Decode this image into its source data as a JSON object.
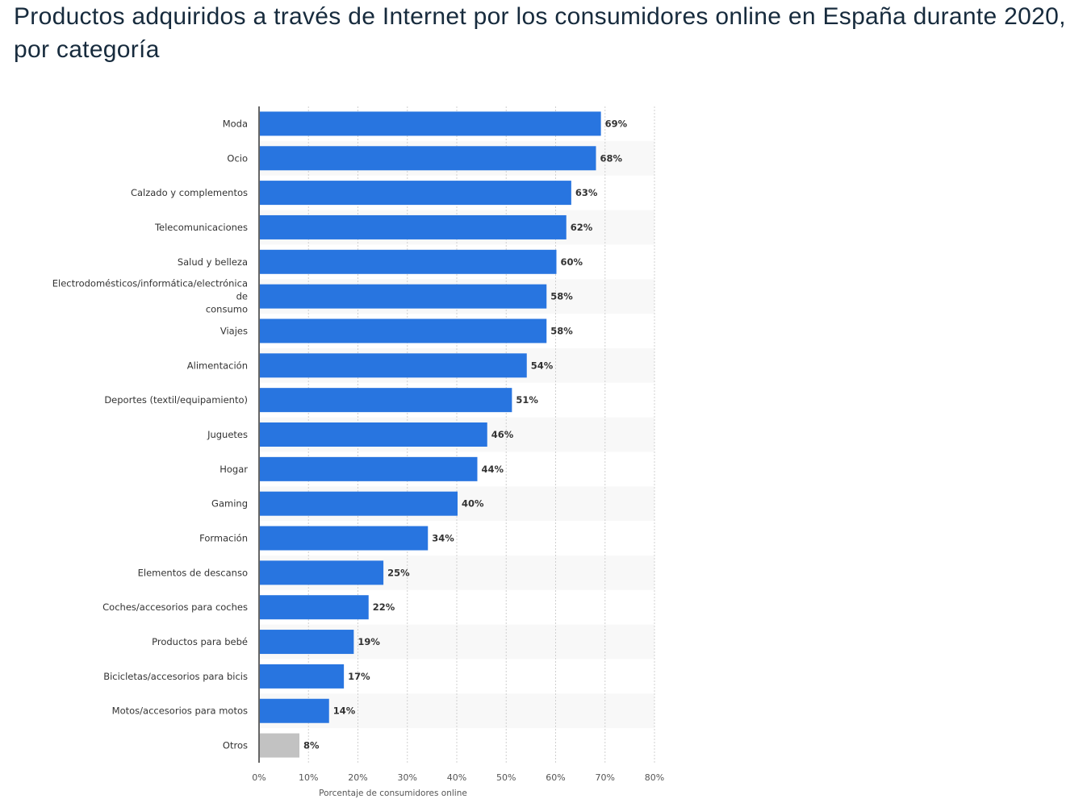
{
  "title": "Productos adquiridos a través de Internet por los consumidores online en España durante 2020, por categoría",
  "colors": {
    "bar": "#2875e0",
    "bar_other": "#c2c2c2",
    "band": "#f8f8f8",
    "grid": "#d0d0d0",
    "axis": "#333333"
  },
  "chart_data": {
    "type": "bar",
    "orientation": "horizontal",
    "title": "Productos adquiridos a través de Internet por los consumidores online en España durante 2020, por categoría",
    "xlabel": "Porcentaje de consumidores online",
    "ylabel": "",
    "xlim": [
      0,
      80
    ],
    "xticks": [
      "0%",
      "10%",
      "20%",
      "30%",
      "40%",
      "50%",
      "60%",
      "70%",
      "80%"
    ],
    "grid": true,
    "categories": [
      "Moda",
      "Ocio",
      "Calzado y complementos",
      "Telecomunicaciones",
      "Salud y belleza",
      "Electrodomésticos/informática/electrónica de consumo",
      "Viajes",
      "Alimentación",
      "Deportes (textil/equipamiento)",
      "Juguetes",
      "Hogar",
      "Gaming",
      "Formación",
      "Elementos de descanso",
      "Coches/accesorios para coches",
      "Productos para bebé",
      "Bicicletas/accesorios para bicis",
      "Motos/accesorios para motos",
      "Otros"
    ],
    "category_lines": [
      [
        "Moda"
      ],
      [
        "Ocio"
      ],
      [
        "Calzado y complementos"
      ],
      [
        "Telecomunicaciones"
      ],
      [
        "Salud y belleza"
      ],
      [
        "Electrodomésticos/informática/electrónica",
        "de",
        "consumo"
      ],
      [
        "Viajes"
      ],
      [
        "Alimentación"
      ],
      [
        "Deportes (textil/equipamiento)"
      ],
      [
        "Juguetes"
      ],
      [
        "Hogar"
      ],
      [
        "Gaming"
      ],
      [
        "Formación"
      ],
      [
        "Elementos de descanso"
      ],
      [
        "Coches/accesorios para coches"
      ],
      [
        "Productos para bebé"
      ],
      [
        "Bicicletas/accesorios para bicis"
      ],
      [
        "Motos/accesorios para motos"
      ],
      [
        "Otros"
      ]
    ],
    "values": [
      69,
      68,
      63,
      62,
      60,
      58,
      58,
      54,
      51,
      46,
      44,
      40,
      34,
      25,
      22,
      19,
      17,
      14,
      8
    ],
    "value_labels": [
      "69%",
      "68%",
      "63%",
      "62%",
      "60%",
      "58%",
      "58%",
      "54%",
      "51%",
      "46%",
      "44%",
      "40%",
      "34%",
      "25%",
      "22%",
      "19%",
      "17%",
      "14%",
      "8%"
    ],
    "highlight_other": "Otros"
  }
}
